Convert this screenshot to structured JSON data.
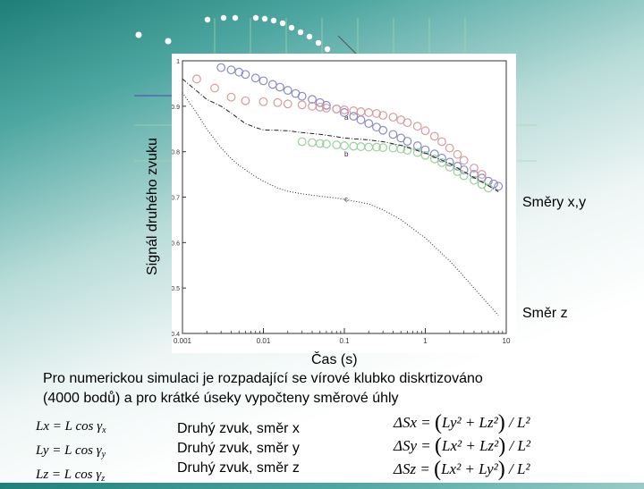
{
  "ylabel": "Signál druhého zvuku",
  "xlabel": "Čas (s)",
  "label_xy": "Směry x,y",
  "label_z": "Směr z",
  "description_line1": "Pro numerickou simulaci je rozpadající se vírové klubko diskrtizováno",
  "description_line2": "(4000 bodů) a pro krátké úseky vypočteny směrové úhly",
  "equations": {
    "lx": "Lx = L cos γ",
    "lx_sub": "x",
    "ly": "Ly = L cos γ",
    "ly_sub": "y",
    "lz": "Lz = L cos γ",
    "lz_sub": "z"
  },
  "legend_lines": [
    "Druhý zvuk, směr x",
    "Druhý zvuk, směr y",
    "Druhý zvuk, směr z"
  ],
  "delta_equations": [
    {
      "lhs": "ΔSx = ",
      "inner": "Ly² + Lz²",
      "rhs": " / L²"
    },
    {
      "lhs": "ΔSy = ",
      "inner": "Lx² + Lz²",
      "rhs": " / L²"
    },
    {
      "lhs": "ΔSz = ",
      "inner": "Lx² + Ly²",
      "rhs": " / L²"
    }
  ],
  "chart_data": {
    "type": "scatter",
    "x_scale": "log",
    "xlim": [
      0.001,
      10
    ],
    "ylim": [
      0.4,
      1.0
    ],
    "x_ticks": [
      {
        "value": 0.001,
        "label": "0.001"
      },
      {
        "value": 0.01,
        "label": "0.01"
      },
      {
        "value": 0.1,
        "label": "0.1"
      },
      {
        "value": 1,
        "label": "1"
      },
      {
        "value": 10,
        "label": "10"
      }
    ],
    "y_ticks": [
      {
        "value": 0.4,
        "label": "0.4"
      },
      {
        "value": 0.5,
        "label": "0.5"
      },
      {
        "value": 0.6,
        "label": "0.6"
      },
      {
        "value": 0.7,
        "label": "0.7"
      },
      {
        "value": 0.8,
        "label": "0.8"
      },
      {
        "value": 0.9,
        "label": "0.9"
      },
      {
        "value": 1.0,
        "label": "1"
      }
    ],
    "annotations": [
      {
        "text": "a",
        "x": 0.1,
        "y": 0.87
      },
      {
        "text": "b",
        "x": 0.1,
        "y": 0.79
      },
      {
        "text": "c",
        "x": 0.1,
        "y": 0.69
      }
    ],
    "series": [
      {
        "marker": "circle",
        "color": "#8a8ac8",
        "x": [
          0.003,
          0.004,
          0.005,
          0.006,
          0.008,
          0.01,
          0.013,
          0.016,
          0.02,
          0.025,
          0.03,
          0.04,
          0.05,
          0.06,
          0.08,
          0.1,
          0.13,
          0.16,
          0.2,
          0.25,
          0.3,
          0.4,
          0.5,
          0.6,
          0.8,
          1,
          1.3,
          1.6,
          2,
          2.5,
          3,
          4,
          5,
          6,
          7,
          8
        ],
        "y": [
          0.985,
          0.98,
          0.975,
          0.97,
          0.962,
          0.956,
          0.948,
          0.942,
          0.935,
          0.928,
          0.922,
          0.915,
          0.908,
          0.902,
          0.894,
          0.886,
          0.878,
          0.87,
          0.862,
          0.854,
          0.847,
          0.838,
          0.83,
          0.823,
          0.813,
          0.804,
          0.795,
          0.786,
          0.777,
          0.768,
          0.76,
          0.75,
          0.742,
          0.735,
          0.729,
          0.724
        ]
      },
      {
        "marker": "circle",
        "color": "#d89a9a",
        "x": [
          0.0015,
          0.0025,
          0.004,
          0.006,
          0.01,
          0.015,
          0.02,
          0.03,
          0.04,
          0.05,
          0.06,
          0.08,
          0.1,
          0.13,
          0.16,
          0.2,
          0.25,
          0.3,
          0.4,
          0.5,
          0.6,
          0.8,
          1,
          1.3,
          1.6,
          2,
          2.5,
          3,
          4,
          5
        ],
        "y": [
          0.96,
          0.94,
          0.92,
          0.912,
          0.91,
          0.908,
          0.905,
          0.903,
          0.9,
          0.898,
          0.896,
          0.894,
          0.892,
          0.89,
          0.888,
          0.886,
          0.884,
          0.88,
          0.876,
          0.87,
          0.864,
          0.856,
          0.846,
          0.834,
          0.822,
          0.808,
          0.794,
          0.781,
          0.764,
          0.75
        ]
      },
      {
        "marker": "circle",
        "color": "#98d098",
        "x": [
          0.03,
          0.04,
          0.05,
          0.06,
          0.08,
          0.1,
          0.13,
          0.16,
          0.2,
          0.25,
          0.3,
          0.4,
          0.5,
          0.6,
          0.8,
          1,
          1.3,
          1.6,
          2,
          2.5,
          3,
          4,
          5,
          6
        ],
        "y": [
          0.822,
          0.82,
          0.818,
          0.817,
          0.815,
          0.813,
          0.812,
          0.811,
          0.81,
          0.81,
          0.809,
          0.808,
          0.806,
          0.803,
          0.798,
          0.792,
          0.784,
          0.776,
          0.766,
          0.756,
          0.747,
          0.737,
          0.728,
          0.72
        ]
      },
      {
        "marker": "dashed-line",
        "color": "#222222",
        "x": [
          0.001,
          0.002,
          0.003,
          0.004,
          0.005,
          0.006,
          0.008,
          0.01,
          0.015,
          0.02,
          0.03,
          0.05,
          0.08,
          0.1,
          0.2,
          0.3,
          0.5,
          1,
          2,
          3,
          5,
          8
        ],
        "y": [
          0.96,
          0.915,
          0.9,
          0.885,
          0.872,
          0.862,
          0.853,
          0.848,
          0.847,
          0.846,
          0.842,
          0.838,
          0.833,
          0.83,
          0.826,
          0.822,
          0.814,
          0.797,
          0.774,
          0.756,
          0.733,
          0.712
        ]
      },
      {
        "marker": "dotted-line",
        "color": "#222222",
        "x": [
          0.001,
          0.0015,
          0.002,
          0.003,
          0.004,
          0.005,
          0.006,
          0.008,
          0.01,
          0.015,
          0.02,
          0.03,
          0.05,
          0.08,
          0.1,
          0.2,
          0.3,
          0.5,
          1,
          2,
          3,
          5,
          8
        ],
        "y": [
          0.93,
          0.885,
          0.85,
          0.808,
          0.785,
          0.77,
          0.76,
          0.745,
          0.735,
          0.72,
          0.713,
          0.707,
          0.702,
          0.698,
          0.695,
          0.685,
          0.672,
          0.65,
          0.61,
          0.56,
          0.525,
          0.48,
          0.44
        ]
      }
    ]
  }
}
